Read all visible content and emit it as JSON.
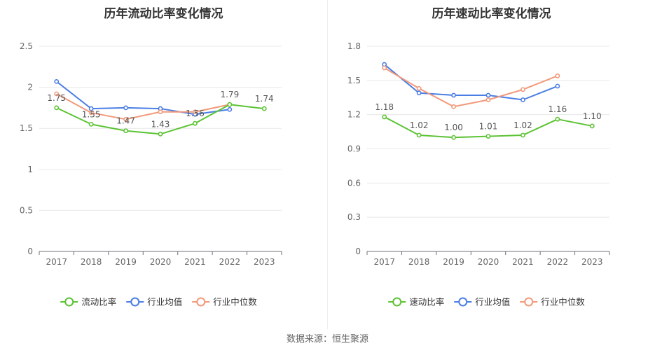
{
  "source_label": "数据来源：恒生聚源",
  "chart_data": [
    {
      "type": "line",
      "title": "历年流动比率变化情况",
      "categories": [
        "2017",
        "2018",
        "2019",
        "2020",
        "2021",
        "2022",
        "2023"
      ],
      "ylim": [
        0,
        2.5
      ],
      "yticks": [
        0,
        0.5,
        1,
        1.5,
        2,
        2.5
      ],
      "ytick_labels": [
        "0",
        "0.5",
        "1",
        "1.5",
        "2",
        "2.5"
      ],
      "grid": true,
      "legend_position": "bottom",
      "series": [
        {
          "name": "流动比率",
          "color": "#5cc334",
          "values": [
            1.75,
            1.55,
            1.47,
            1.43,
            1.56,
            1.79,
            1.74
          ],
          "labels": [
            "1.75",
            "1.55",
            "1.47",
            "1.43",
            "1.56",
            "1.79",
            "1.74"
          ]
        },
        {
          "name": "行业均值",
          "color": "#4b7ee5",
          "values": [
            2.07,
            1.74,
            1.75,
            1.74,
            1.67,
            1.73,
            null
          ]
        },
        {
          "name": "行业中位数",
          "color": "#f2997a",
          "values": [
            1.92,
            1.69,
            1.61,
            1.7,
            1.7,
            1.79,
            null
          ]
        }
      ]
    },
    {
      "type": "line",
      "title": "历年速动比率变化情况",
      "categories": [
        "2017",
        "2018",
        "2019",
        "2020",
        "2021",
        "2022",
        "2023"
      ],
      "ylim": [
        0,
        1.8
      ],
      "yticks": [
        0,
        0.3,
        0.6,
        0.9,
        1.2,
        1.5,
        1.8
      ],
      "ytick_labels": [
        "0",
        "0.3",
        "0.6",
        "0.9",
        "1.2",
        "1.5",
        "1.8"
      ],
      "grid": true,
      "legend_position": "bottom",
      "series": [
        {
          "name": "速动比率",
          "color": "#5cc334",
          "values": [
            1.18,
            1.02,
            1.0,
            1.01,
            1.02,
            1.16,
            1.1
          ],
          "labels": [
            "1.18",
            "1.02",
            "1.00",
            "1.01",
            "1.02",
            "1.16",
            "1.10"
          ]
        },
        {
          "name": "行业均值",
          "color": "#4b7ee5",
          "values": [
            1.64,
            1.39,
            1.37,
            1.37,
            1.33,
            1.45,
            null
          ]
        },
        {
          "name": "行业中位数",
          "color": "#f2997a",
          "values": [
            1.61,
            1.43,
            1.27,
            1.33,
            1.42,
            1.54,
            null
          ]
        }
      ]
    }
  ]
}
